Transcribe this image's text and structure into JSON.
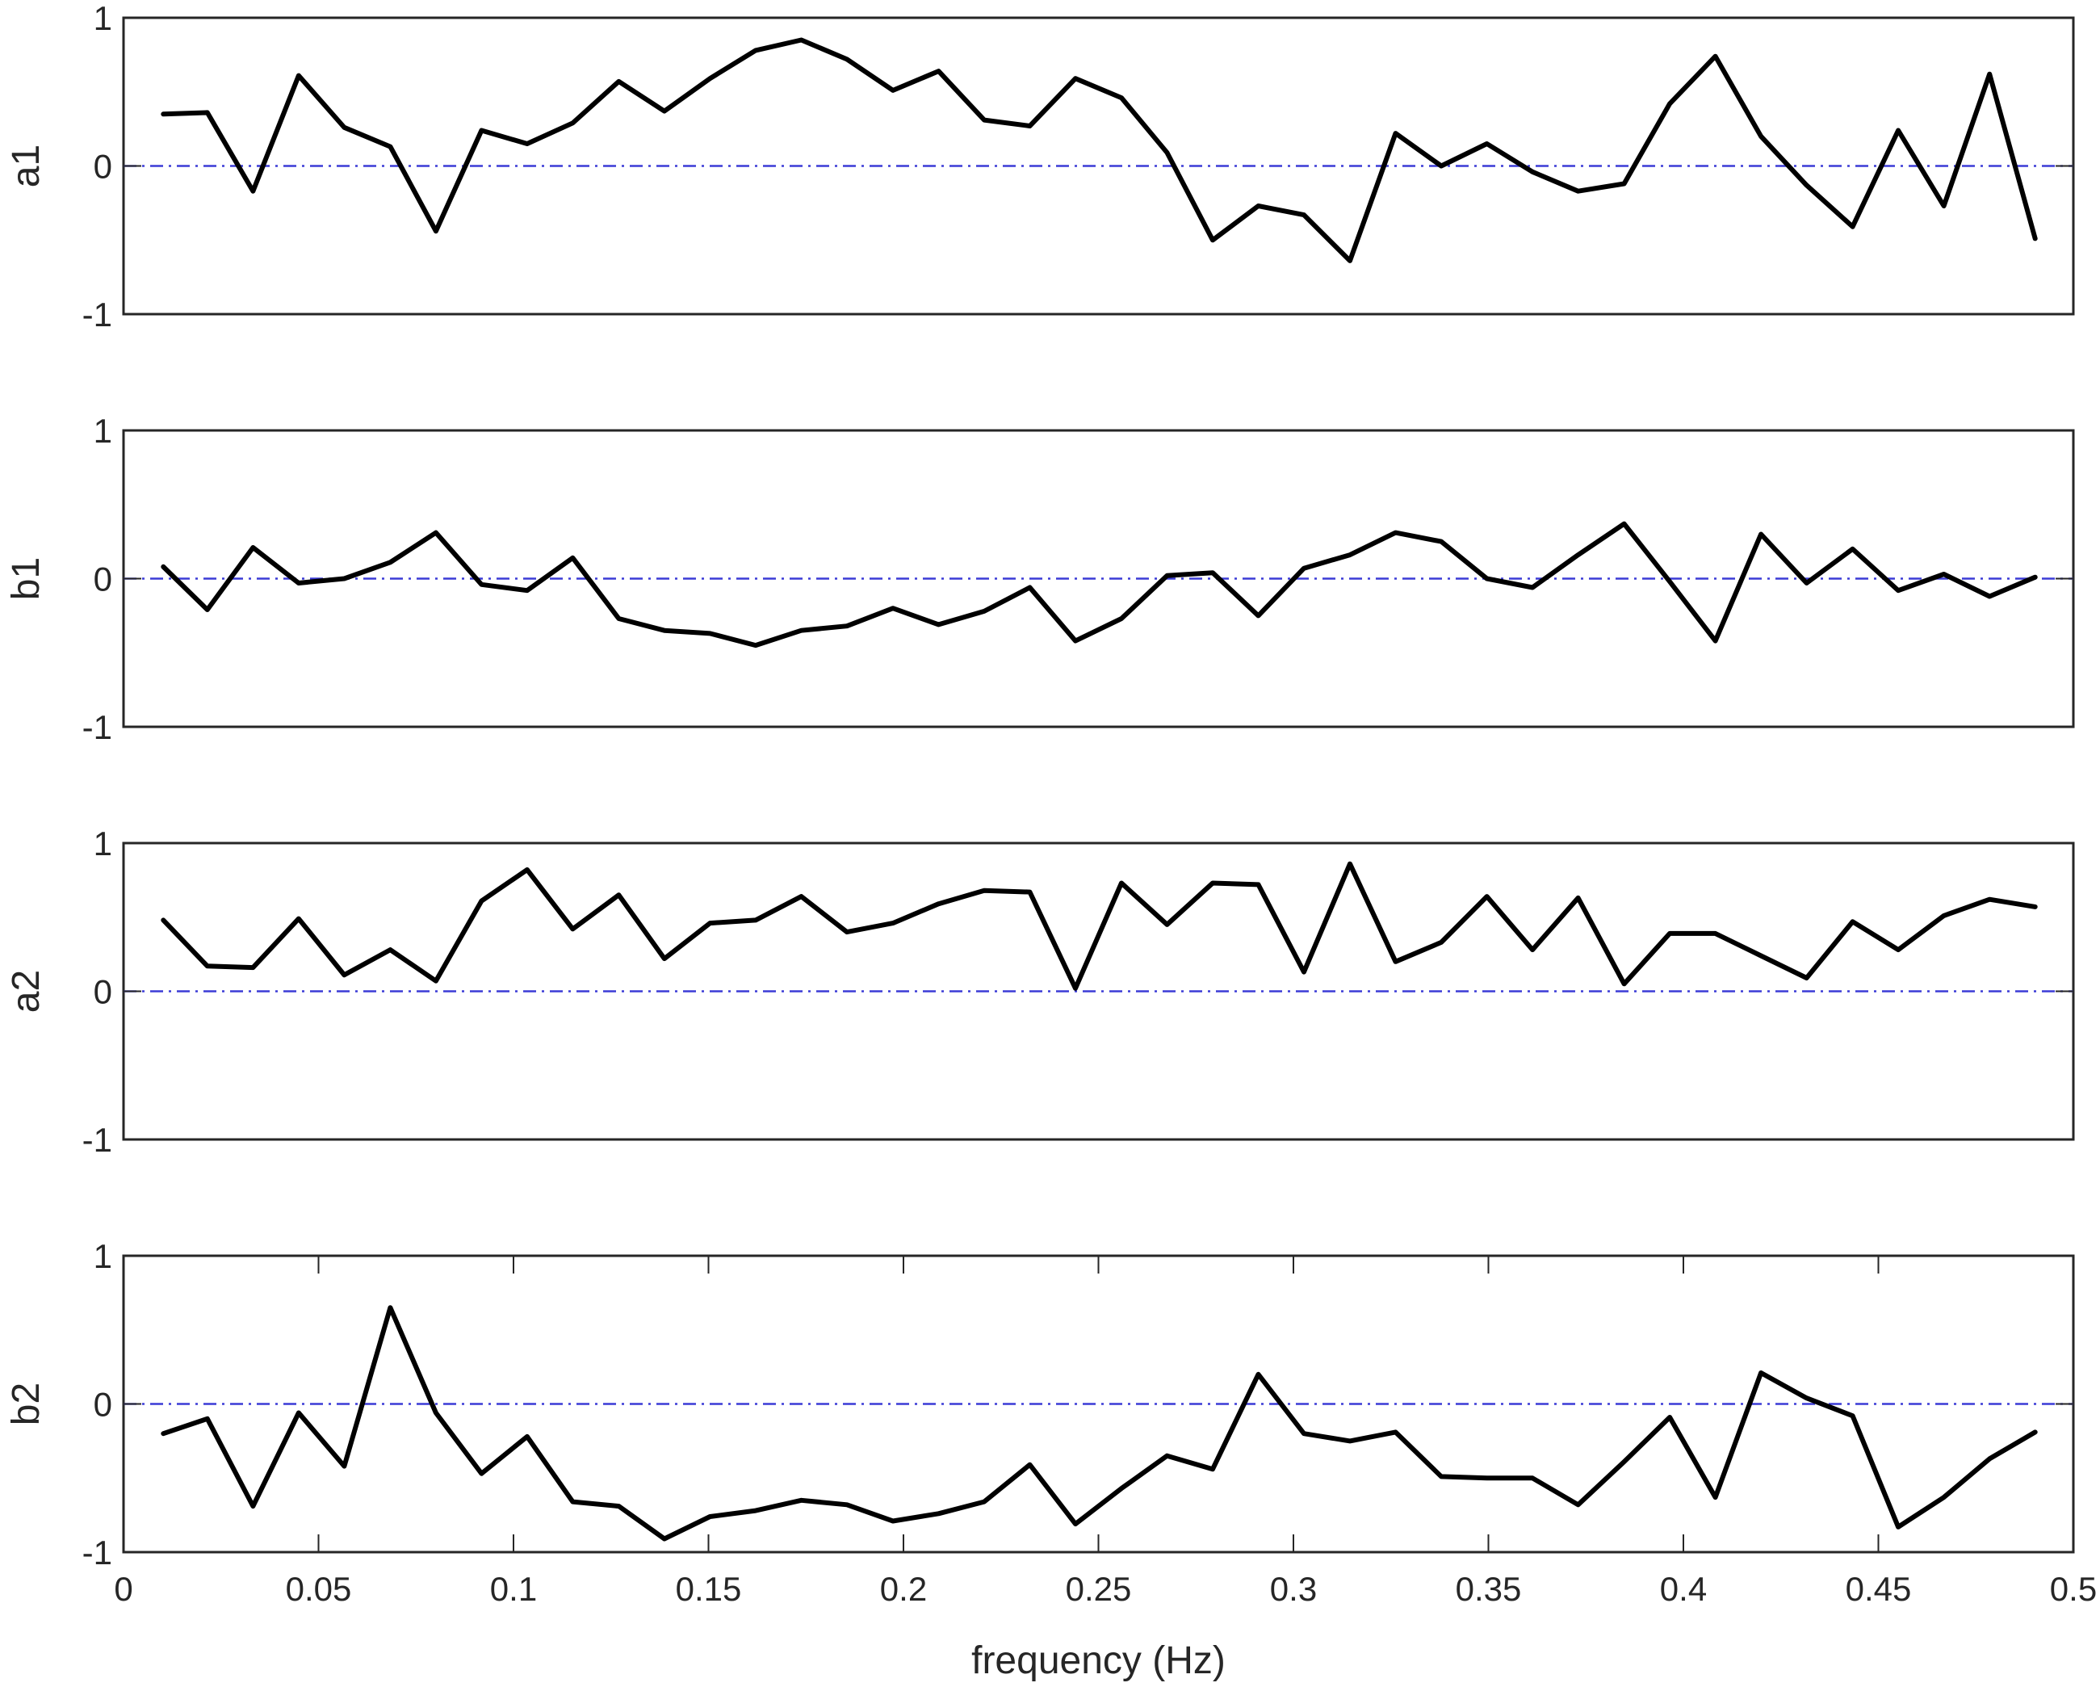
{
  "chart_data": [
    {
      "type": "line",
      "ylabel": "a1",
      "xlabel": "",
      "xlim": [
        0,
        0.5
      ],
      "ylim": [
        -1,
        1
      ],
      "yticks": [
        "-1",
        "0",
        "1"
      ],
      "x": [
        0.0102,
        0.0215,
        0.0332,
        0.0449,
        0.0566,
        0.0684,
        0.0801,
        0.0918,
        0.1035,
        0.1152,
        0.127,
        0.1387,
        0.1504,
        0.1621,
        0.1738,
        0.1855,
        0.1973,
        0.209,
        0.2207,
        0.2324,
        0.2441,
        0.2559,
        0.2676,
        0.2793,
        0.291,
        0.3027,
        0.3145,
        0.3262,
        0.3379,
        0.3496,
        0.3613,
        0.373,
        0.3848,
        0.3965,
        0.4082,
        0.4199,
        0.4316,
        0.4434,
        0.4551,
        0.4668,
        0.4785,
        0.4902
      ],
      "series": [
        {
          "values": [
            0.35,
            0.36,
            -0.17,
            0.61,
            0.26,
            0.13,
            -0.44,
            0.24,
            0.15,
            0.29,
            0.57,
            0.37,
            0.59,
            0.78,
            0.85,
            0.72,
            0.51,
            0.64,
            0.31,
            0.27,
            0.59,
            0.46,
            0.09,
            -0.5,
            -0.27,
            -0.33,
            -0.64,
            0.22,
            0.0,
            0.15,
            -0.04,
            -0.17,
            -0.12,
            0.42,
            0.74,
            0.2,
            -0.13,
            -0.41,
            0.24,
            -0.27,
            0.62,
            -0.49
          ]
        }
      ],
      "reference_line": 0
    },
    {
      "type": "line",
      "ylabel": "b1",
      "xlabel": "",
      "xlim": [
        0,
        0.5
      ],
      "ylim": [
        -1,
        1
      ],
      "yticks": [
        "-1",
        "0",
        "1"
      ],
      "x": [
        0.0102,
        0.0215,
        0.0332,
        0.0449,
        0.0566,
        0.0684,
        0.0801,
        0.0918,
        0.1035,
        0.1152,
        0.127,
        0.1387,
        0.1504,
        0.1621,
        0.1738,
        0.1855,
        0.1973,
        0.209,
        0.2207,
        0.2324,
        0.2441,
        0.2559,
        0.2676,
        0.2793,
        0.291,
        0.3027,
        0.3145,
        0.3262,
        0.3379,
        0.3496,
        0.3613,
        0.373,
        0.3848,
        0.3965,
        0.4082,
        0.4199,
        0.4316,
        0.4434,
        0.4551,
        0.4668,
        0.4785,
        0.4902
      ],
      "series": [
        {
          "values": [
            0.08,
            -0.21,
            0.21,
            -0.03,
            0.0,
            0.11,
            0.31,
            -0.04,
            -0.08,
            0.14,
            -0.27,
            -0.35,
            -0.37,
            -0.45,
            -0.35,
            -0.32,
            -0.2,
            -0.31,
            -0.22,
            -0.06,
            -0.42,
            -0.27,
            0.02,
            0.04,
            -0.25,
            0.07,
            0.16,
            0.31,
            0.25,
            0.0,
            -0.06,
            0.16,
            0.37,
            -0.02,
            -0.42,
            0.3,
            -0.03,
            0.2,
            -0.08,
            0.03,
            -0.12,
            0.01
          ]
        }
      ],
      "reference_line": 0
    },
    {
      "type": "line",
      "ylabel": "a2",
      "xlabel": "",
      "xlim": [
        0,
        0.5
      ],
      "ylim": [
        -1,
        1
      ],
      "yticks": [
        "-1",
        "0",
        "1"
      ],
      "x": [
        0.0102,
        0.0215,
        0.0332,
        0.0449,
        0.0566,
        0.0684,
        0.0801,
        0.0918,
        0.1035,
        0.1152,
        0.127,
        0.1387,
        0.1504,
        0.1621,
        0.1738,
        0.1855,
        0.1973,
        0.209,
        0.2207,
        0.2324,
        0.2441,
        0.2559,
        0.2676,
        0.2793,
        0.291,
        0.3027,
        0.3145,
        0.3262,
        0.3379,
        0.3496,
        0.3613,
        0.373,
        0.3848,
        0.3965,
        0.4082,
        0.4199,
        0.4316,
        0.4434,
        0.4551,
        0.4668,
        0.4785,
        0.4902
      ],
      "series": [
        {
          "values": [
            0.48,
            0.17,
            0.16,
            0.49,
            0.11,
            0.28,
            0.07,
            0.61,
            0.82,
            0.42,
            0.65,
            0.22,
            0.46,
            0.48,
            0.64,
            0.4,
            0.46,
            0.59,
            0.68,
            0.67,
            0.02,
            0.73,
            0.45,
            0.73,
            0.72,
            0.13,
            0.86,
            0.2,
            0.33,
            0.64,
            0.28,
            0.63,
            0.05,
            0.39,
            0.39,
            0.24,
            0.09,
            0.47,
            0.28,
            0.51,
            0.62,
            0.57
          ]
        }
      ],
      "reference_line": 0
    },
    {
      "type": "line",
      "ylabel": "b2",
      "xlabel": "frequency (Hz)",
      "xlim": [
        0,
        0.5
      ],
      "ylim": [
        -1,
        1
      ],
      "yticks": [
        "-1",
        "0",
        "1"
      ],
      "xticks": [
        "0",
        "0.05",
        "0.1",
        "0.15",
        "0.2",
        "0.25",
        "0.3",
        "0.35",
        "0.4",
        "0.45",
        "0.5"
      ],
      "x": [
        0.0102,
        0.0215,
        0.0332,
        0.0449,
        0.0566,
        0.0684,
        0.0801,
        0.0918,
        0.1035,
        0.1152,
        0.127,
        0.1387,
        0.1504,
        0.1621,
        0.1738,
        0.1855,
        0.1973,
        0.209,
        0.2207,
        0.2324,
        0.2441,
        0.2559,
        0.2676,
        0.2793,
        0.291,
        0.3027,
        0.3145,
        0.3262,
        0.3379,
        0.3496,
        0.3613,
        0.373,
        0.3848,
        0.3965,
        0.4082,
        0.4199,
        0.4316,
        0.4434,
        0.4551,
        0.4668,
        0.4785,
        0.4902
      ],
      "series": [
        {
          "values": [
            -0.2,
            -0.1,
            -0.69,
            -0.06,
            -0.42,
            0.65,
            -0.06,
            -0.47,
            -0.22,
            -0.66,
            -0.69,
            -0.91,
            -0.76,
            -0.72,
            -0.65,
            -0.68,
            -0.79,
            -0.74,
            -0.66,
            -0.41,
            -0.81,
            -0.57,
            -0.35,
            -0.44,
            0.2,
            -0.2,
            -0.25,
            -0.19,
            -0.49,
            -0.5,
            -0.5,
            -0.68,
            -0.39,
            -0.09,
            -0.63,
            0.21,
            0.04,
            -0.08,
            -0.83,
            -0.63,
            -0.37,
            -0.19
          ]
        }
      ],
      "reference_line": 0
    }
  ],
  "colors": {
    "line": "#000000",
    "reference": "#3b3bd6",
    "axes": "#262626",
    "background": "#ffffff"
  }
}
